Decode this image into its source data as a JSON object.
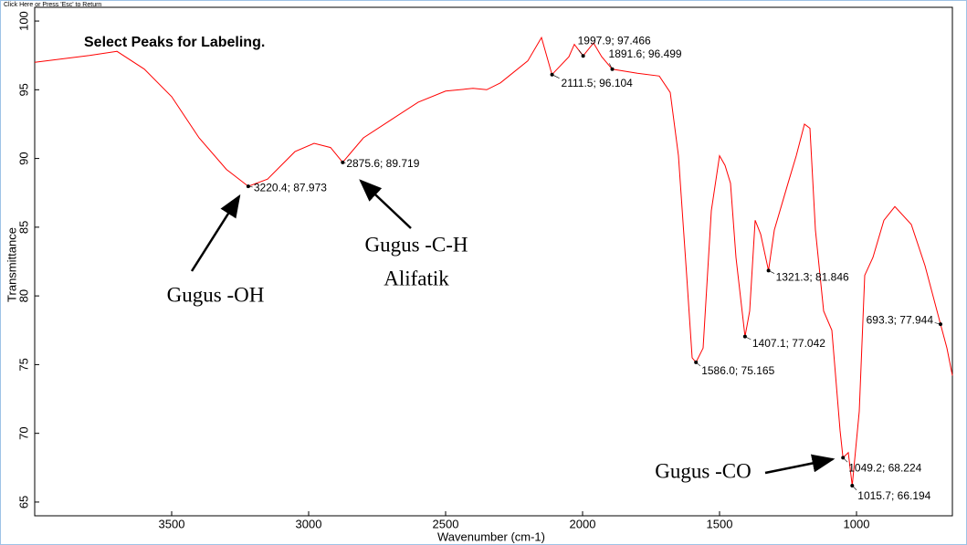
{
  "status_text": "Click Here or Press 'Esc' to Return",
  "chart_data": {
    "type": "line",
    "title": "Select Peaks for Labeling.",
    "xlabel": "Wavenumber (cm-1)",
    "ylabel": "Transmittance",
    "xlim": [
      4000,
      650
    ],
    "ylim": [
      64,
      101
    ],
    "xticks": [
      3500,
      3000,
      2500,
      2000,
      1500,
      1000
    ],
    "yticks": [
      65,
      70,
      75,
      80,
      85,
      90,
      95,
      100
    ],
    "color": "#ff0000",
    "x": [
      4000,
      3800,
      3700,
      3600,
      3500,
      3400,
      3300,
      3220.4,
      3150,
      3050,
      2980,
      2920,
      2875.6,
      2800,
      2700,
      2600,
      2500,
      2400,
      2350,
      2300,
      2200,
      2150,
      2111.5,
      2050,
      2030,
      1997.9,
      1960,
      1930,
      1891.6,
      1800,
      1720,
      1680,
      1650,
      1620,
      1600,
      1586.0,
      1560,
      1530,
      1500,
      1480,
      1460,
      1440,
      1407.1,
      1390,
      1370,
      1350,
      1321.3,
      1300,
      1250,
      1220,
      1190,
      1170,
      1150,
      1120,
      1090,
      1060,
      1049.2,
      1030,
      1015.7,
      990,
      970,
      940,
      900,
      860,
      800,
      750,
      693.3,
      670,
      650
    ],
    "values": [
      97.0,
      97.5,
      97.8,
      96.5,
      94.5,
      91.5,
      89.2,
      87.973,
      88.5,
      90.5,
      91.1,
      90.8,
      89.719,
      91.5,
      92.8,
      94.1,
      94.9,
      95.1,
      95.0,
      95.5,
      97.1,
      98.8,
      96.104,
      97.4,
      98.3,
      97.466,
      98.4,
      97.4,
      96.499,
      96.2,
      96.0,
      94.8,
      90.2,
      81.5,
      75.5,
      75.165,
      76.2,
      86.2,
      90.2,
      89.5,
      88.2,
      82.8,
      77.042,
      78.9,
      85.5,
      84.5,
      81.846,
      84.8,
      88.2,
      90.2,
      92.5,
      92.2,
      84.8,
      78.9,
      77.5,
      70.2,
      68.224,
      68.6,
      66.194,
      71.6,
      81.5,
      82.8,
      85.5,
      86.5,
      85.2,
      82.2,
      77.944,
      76.2,
      74.2
    ],
    "peaks": [
      {
        "x": 3220.4,
        "y": 87.973,
        "label": "3220.4; 87.973"
      },
      {
        "x": 2875.6,
        "y": 89.719,
        "label": "2875.6; 89.719"
      },
      {
        "x": 2111.5,
        "y": 96.104,
        "label": "2111.5; 96.104"
      },
      {
        "x": 1997.9,
        "y": 97.466,
        "label": "1997.9; 97.466"
      },
      {
        "x": 1891.6,
        "y": 96.499,
        "label": "1891.6; 96.499"
      },
      {
        "x": 1586.0,
        "y": 75.165,
        "label": "1586.0; 75.165"
      },
      {
        "x": 1407.1,
        "y": 77.042,
        "label": "1407.1; 77.042"
      },
      {
        "x": 1321.3,
        "y": 81.846,
        "label": "1321.3; 81.846"
      },
      {
        "x": 1049.2,
        "y": 68.224,
        "label": "1049.2; 68.224"
      },
      {
        "x": 1015.7,
        "y": 66.194,
        "label": "1015.7; 66.194"
      },
      {
        "x": 693.3,
        "y": 77.944,
        "label": "693.3; 77.944"
      }
    ],
    "annotations": [
      [
        "Gugus -OH"
      ],
      [
        "Gugus -C-H",
        "Alifatik"
      ],
      [
        "Gugus -CO"
      ]
    ]
  }
}
